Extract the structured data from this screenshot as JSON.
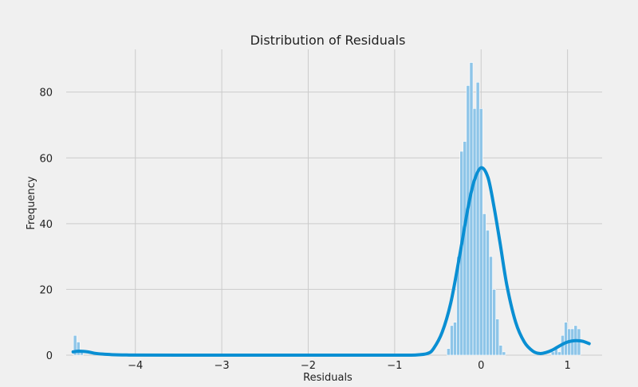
{
  "chart_data": {
    "type": "bar",
    "title": "Distribution of Residuals",
    "xlabel": "Residuals",
    "ylabel": "Frequency",
    "xlim": [
      -4.8,
      1.4
    ],
    "ylim": [
      0,
      93
    ],
    "xticks": [
      -4,
      -3,
      -2,
      -1,
      0,
      1
    ],
    "xtick_labels": [
      "−4",
      "−3",
      "−2",
      "−1",
      "0",
      "1"
    ],
    "yticks": [
      0,
      20,
      40,
      60,
      80
    ],
    "grid": true,
    "legend": "none",
    "bin_width": 0.0377,
    "bins": [
      {
        "x": -4.716,
        "count": 6
      },
      {
        "x": -4.678,
        "count": 4
      },
      {
        "x": -4.64,
        "count": 1
      },
      {
        "x": -0.396,
        "count": 2
      },
      {
        "x": -0.358,
        "count": 9
      },
      {
        "x": -0.321,
        "count": 10
      },
      {
        "x": -0.283,
        "count": 30
      },
      {
        "x": -0.245,
        "count": 62
      },
      {
        "x": -0.208,
        "count": 65
      },
      {
        "x": -0.17,
        "count": 82
      },
      {
        "x": -0.132,
        "count": 89
      },
      {
        "x": -0.094,
        "count": 75
      },
      {
        "x": -0.057,
        "count": 83
      },
      {
        "x": -0.019,
        "count": 75
      },
      {
        "x": 0.019,
        "count": 43
      },
      {
        "x": 0.057,
        "count": 38
      },
      {
        "x": 0.094,
        "count": 30
      },
      {
        "x": 0.132,
        "count": 20
      },
      {
        "x": 0.17,
        "count": 11
      },
      {
        "x": 0.208,
        "count": 3
      },
      {
        "x": 0.245,
        "count": 1
      },
      {
        "x": 0.811,
        "count": 1
      },
      {
        "x": 0.849,
        "count": 2
      },
      {
        "x": 0.887,
        "count": 1
      },
      {
        "x": 0.924,
        "count": 6
      },
      {
        "x": 0.962,
        "count": 10
      },
      {
        "x": 1.0,
        "count": 8
      },
      {
        "x": 1.038,
        "count": 8
      },
      {
        "x": 1.075,
        "count": 9
      },
      {
        "x": 1.113,
        "count": 8
      }
    ],
    "kde": {
      "x": [
        -4.72,
        -4.65,
        -4.55,
        -4.45,
        -4.3,
        -4.1,
        -3.5,
        -2.0,
        -1.0,
        -0.75,
        -0.62,
        -0.55,
        -0.45,
        -0.35,
        -0.25,
        -0.15,
        -0.08,
        0.0,
        0.08,
        0.15,
        0.22,
        0.3,
        0.4,
        0.5,
        0.6,
        0.68,
        0.75,
        0.82,
        0.9,
        0.98,
        1.05,
        1.12,
        1.18,
        1.25
      ],
      "y": [
        1,
        1.2,
        1,
        0.5,
        0.2,
        0.05,
        0,
        0,
        0,
        0.05,
        0.5,
        2,
        7,
        16,
        30,
        45,
        53,
        57,
        54,
        45,
        34,
        21,
        10,
        4,
        1.2,
        0.5,
        0.8,
        1.5,
        2.7,
        3.8,
        4.3,
        4.4,
        4.2,
        3.5
      ]
    },
    "colors": {
      "bar": "#8ec5e8",
      "bar_edge": "#ffffff",
      "kde": "#0a8fd3",
      "grid": "#cbcbcb",
      "background": "#f0f0f0"
    }
  }
}
